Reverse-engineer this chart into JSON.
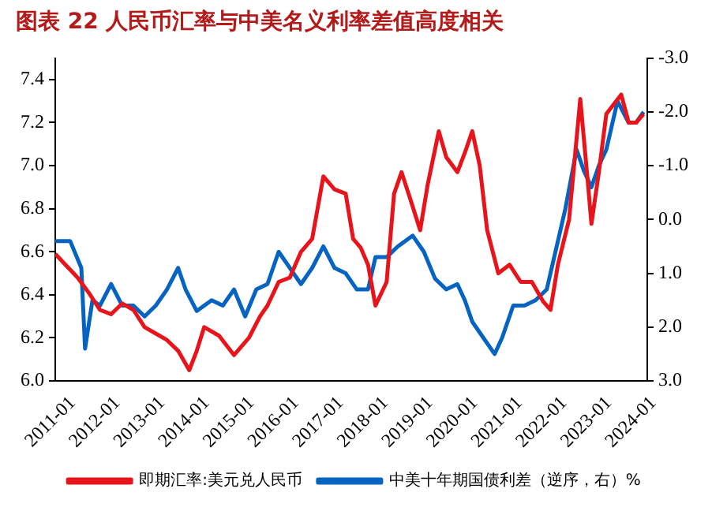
{
  "chart_data": {
    "type": "line",
    "title": "图表 22 人民币汇率与中美名义利率差值高度相关",
    "x": [
      "2011-01",
      "2011-05",
      "2011-08",
      "2011-09",
      "2011-11",
      "2012-01",
      "2012-04",
      "2012-07",
      "2012-10",
      "2013-01",
      "2013-04",
      "2013-07",
      "2013-10",
      "2013-12",
      "2014-03",
      "2014-07",
      "2014-10",
      "2015-01",
      "2015-04",
      "2015-07",
      "2015-10",
      "2016-01",
      "2016-04",
      "2016-07",
      "2016-10",
      "2017-01",
      "2017-04",
      "2017-07",
      "2017-10",
      "2018-01",
      "2018-03",
      "2018-06",
      "2018-09",
      "2019-01",
      "2019-04",
      "2019-07",
      "2019-10",
      "2020-01",
      "2020-03",
      "2020-05",
      "2020-08",
      "2020-11",
      "2021-01",
      "2021-04",
      "2021-07",
      "2021-10",
      "2022-01",
      "2022-03",
      "2022-06",
      "2022-09",
      "2022-11",
      "2023-01",
      "2023-03",
      "2023-05",
      "2023-08",
      "2023-11",
      "2024-01",
      "2024-03"
    ],
    "series": [
      {
        "name": "即期汇率:美元兑人民币",
        "color": "#e8141c",
        "x": [
          "2011-01",
          "2011-07",
          "2011-10",
          "2012-01",
          "2012-04",
          "2012-07",
          "2012-10",
          "2013-01",
          "2013-04",
          "2013-07",
          "2013-10",
          "2014-01",
          "2014-03",
          "2014-05",
          "2014-09",
          "2015-01",
          "2015-05",
          "2015-08",
          "2015-10",
          "2016-01",
          "2016-04",
          "2016-07",
          "2016-10",
          "2017-01",
          "2017-04",
          "2017-07",
          "2017-09",
          "2017-11",
          "2018-01",
          "2018-03",
          "2018-06",
          "2018-08",
          "2018-10",
          "2019-01",
          "2019-03",
          "2019-05",
          "2019-08",
          "2019-10",
          "2020-01",
          "2020-03",
          "2020-05",
          "2020-07",
          "2020-09",
          "2020-12",
          "2021-03",
          "2021-06",
          "2021-09",
          "2021-12",
          "2022-02",
          "2022-04",
          "2022-07",
          "2022-10",
          "2022-12",
          "2023-01",
          "2023-03",
          "2023-05",
          "2023-09",
          "2023-11",
          "2024-01",
          "2024-03"
        ],
        "values": [
          6.59,
          6.48,
          6.41,
          6.33,
          6.31,
          6.36,
          6.33,
          6.25,
          6.22,
          6.19,
          6.14,
          6.05,
          6.14,
          6.25,
          6.21,
          6.12,
          6.2,
          6.3,
          6.35,
          6.46,
          6.48,
          6.6,
          6.66,
          6.95,
          6.89,
          6.87,
          6.66,
          6.62,
          6.54,
          6.35,
          6.46,
          6.87,
          6.97,
          6.81,
          6.7,
          6.91,
          7.16,
          7.04,
          6.97,
          7.06,
          7.16,
          7.0,
          6.7,
          6.5,
          6.54,
          6.46,
          6.46,
          6.37,
          6.33,
          6.54,
          6.75,
          7.31,
          6.93,
          6.73,
          6.97,
          7.24,
          7.33,
          7.2,
          7.2,
          7.24
        ]
      },
      {
        "name": "中美十年期国债利差（逆序，右）%",
        "color": "#0563c1",
        "axis": "y2",
        "values": [
          0.4,
          0.4,
          0.9,
          2.4,
          1.5,
          1.6,
          1.2,
          1.6,
          1.6,
          1.8,
          1.6,
          1.3,
          0.9,
          1.3,
          1.7,
          1.5,
          1.6,
          1.3,
          1.8,
          1.3,
          1.2,
          0.6,
          0.9,
          1.2,
          0.9,
          0.5,
          0.9,
          1.0,
          1.3,
          1.3,
          0.7,
          0.7,
          0.5,
          0.3,
          0.6,
          1.1,
          1.3,
          1.2,
          1.5,
          1.9,
          2.2,
          2.5,
          2.2,
          1.6,
          1.6,
          1.5,
          1.3,
          0.7,
          -0.2,
          -1.3,
          -0.9,
          -0.6,
          -1.0,
          -1.3,
          -2.2,
          -1.8,
          -1.8,
          -2.0
        ]
      }
    ],
    "xlim": [
      "2011-01",
      "2024-04"
    ],
    "xticks": [
      "2011-01",
      "2012-01",
      "2013-01",
      "2014-01",
      "2015-01",
      "2016-01",
      "2017-01",
      "2018-01",
      "2019-01",
      "2020-01",
      "2021-01",
      "2022-01",
      "2023-01",
      "2024-01"
    ],
    "ylim": [
      6.0,
      7.5
    ],
    "yticks": [
      {
        "value": 6.0,
        "label": "6.0"
      },
      {
        "value": 6.2,
        "label": "6.2"
      },
      {
        "value": 6.4,
        "label": "6.4"
      },
      {
        "value": 6.6,
        "label": "6.6"
      },
      {
        "value": 6.8,
        "label": "6.8"
      },
      {
        "value": 7.0,
        "label": "7.0"
      },
      {
        "value": 7.2,
        "label": "7.2"
      },
      {
        "value": 7.4,
        "label": "7.4"
      }
    ],
    "y2lim": [
      3.0,
      -3.0
    ],
    "y2ticks": [
      {
        "value": -3,
        "label": "-3.0"
      },
      {
        "value": -2,
        "label": "-2.0"
      },
      {
        "value": -1,
        "label": "-1.0"
      },
      {
        "value": 0,
        "label": "0.0"
      },
      {
        "value": 1,
        "label": "1.0"
      },
      {
        "value": 2,
        "label": "2.0"
      },
      {
        "value": 3,
        "label": "3.0"
      }
    ],
    "grid": false,
    "legend": "bottom",
    "marker": "none",
    "line_style": "solid"
  }
}
